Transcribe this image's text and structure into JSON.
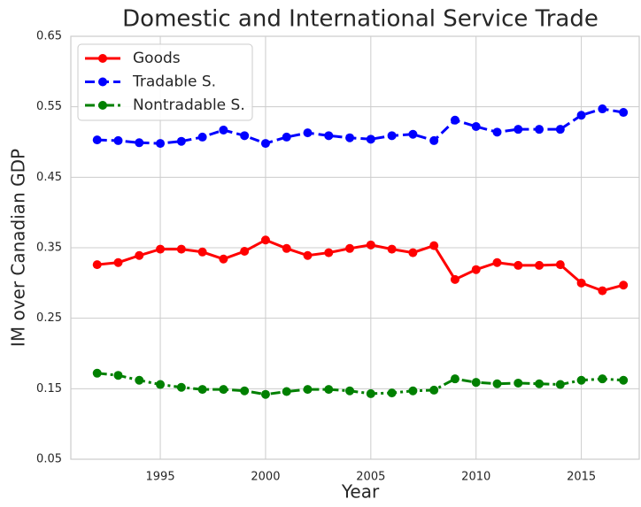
{
  "chart_data": {
    "type": "line",
    "title": "Domestic and International Service Trade",
    "x_label": "Year",
    "y_label": "IM over Canadian GDP",
    "x": [
      1992,
      1993,
      1994,
      1995,
      1996,
      1997,
      1998,
      1999,
      2000,
      2001,
      2002,
      2003,
      2004,
      2005,
      2006,
      2007,
      2008,
      2009,
      2010,
      2011,
      2012,
      2013,
      2014,
      2015,
      2016,
      2017
    ],
    "series": [
      {
        "name": "Goods",
        "color": "#ff0000",
        "linestyle": "solid",
        "values": [
          0.326,
          0.329,
          0.339,
          0.348,
          0.348,
          0.344,
          0.334,
          0.345,
          0.361,
          0.349,
          0.339,
          0.343,
          0.349,
          0.354,
          0.348,
          0.343,
          0.353,
          0.305,
          0.319,
          0.329,
          0.325,
          0.325,
          0.326,
          0.3,
          0.289,
          0.297
        ]
      },
      {
        "name": "Tradable S.",
        "color": "#0000ff",
        "linestyle": "dashed",
        "values": [
          0.503,
          0.502,
          0.499,
          0.498,
          0.501,
          0.507,
          0.517,
          0.509,
          0.498,
          0.507,
          0.513,
          0.509,
          0.506,
          0.504,
          0.509,
          0.511,
          0.502,
          0.531,
          0.522,
          0.514,
          0.518,
          0.518,
          0.518,
          0.538,
          0.547,
          0.542
        ]
      },
      {
        "name": "Nontradable S.",
        "color": "#008000",
        "linestyle": "dashdot",
        "values": [
          0.172,
          0.169,
          0.162,
          0.156,
          0.152,
          0.149,
          0.149,
          0.147,
          0.142,
          0.146,
          0.149,
          0.149,
          0.147,
          0.143,
          0.144,
          0.147,
          0.148,
          0.164,
          0.159,
          0.157,
          0.158,
          0.157,
          0.156,
          0.162,
          0.164,
          0.162
        ]
      }
    ],
    "xlim": [
      1990.75,
      2017.75
    ],
    "xticks": [
      1995,
      2000,
      2005,
      2010,
      2015
    ],
    "ylim": [
      0.05,
      0.65
    ],
    "yticks": [
      0.05,
      0.15,
      0.25,
      0.35,
      0.45,
      0.55,
      0.65
    ],
    "grid": true,
    "legend": "upper left"
  }
}
